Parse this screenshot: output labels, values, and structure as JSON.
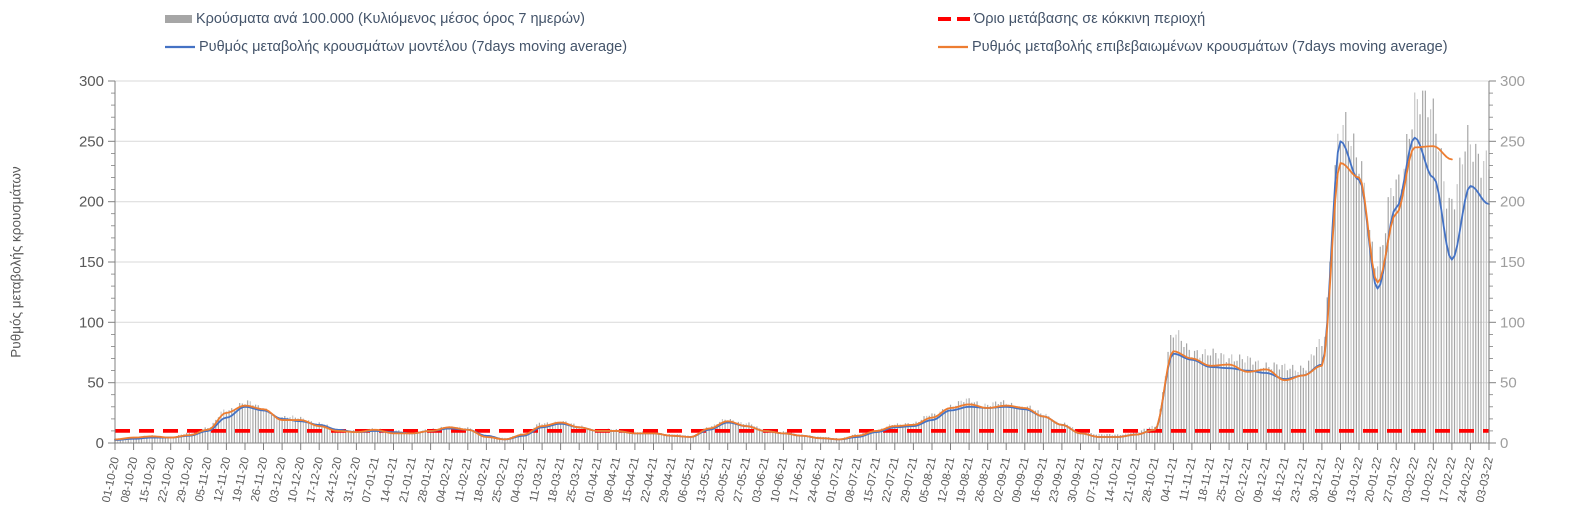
{
  "legend": {
    "bars": {
      "label": "Κρούσματα ανά 100.000 (Κυλιόμενος μέσος όρος 7 ημερών)",
      "color": "#A6A6A6"
    },
    "model": {
      "label": "Ρυθμός μεταβολής κρουσμάτων μοντέλου (7days moving average)",
      "color": "#4472C4"
    },
    "threshold": {
      "label": "Όριο μετάβασης σε κόκκινη περιοχή",
      "color": "#FF0000"
    },
    "confirmed": {
      "label": "Ρυθμός μεταβολής επιβεβαιωμένων κρουσμάτων (7days moving average)",
      "color": "#ED7D31"
    }
  },
  "y_axis": {
    "title": "Ρυθμός μεταβολής κρουσμάτων",
    "ticks": [
      0,
      50,
      100,
      150,
      200,
      250,
      300
    ],
    "min": 0,
    "max": 300,
    "minor_step": 10
  },
  "chart_data": {
    "type": "bar",
    "note": "daily bars + two 7-day moving-average lines; values sampled at weekly axis labels",
    "categories": [
      "01-10-20",
      "08-10-20",
      "15-10-20",
      "22-10-20",
      "29-10-20",
      "05-11-20",
      "12-11-20",
      "19-11-20",
      "26-11-20",
      "03-12-20",
      "10-12-20",
      "17-12-20",
      "24-12-20",
      "31-12-20",
      "07-01-21",
      "14-01-21",
      "21-01-21",
      "28-01-21",
      "04-02-21",
      "11-02-21",
      "18-02-21",
      "25-02-21",
      "04-03-21",
      "11-03-21",
      "18-03-21",
      "25-03-21",
      "01-04-21",
      "08-04-21",
      "15-04-21",
      "22-04-21",
      "29-04-21",
      "06-05-21",
      "13-05-21",
      "20-05-21",
      "27-05-21",
      "03-06-21",
      "10-06-21",
      "17-06-21",
      "24-06-21",
      "01-07-21",
      "08-07-21",
      "15-07-21",
      "22-07-21",
      "29-07-21",
      "05-08-21",
      "12-08-21",
      "19-08-21",
      "26-08-21",
      "02-09-21",
      "09-09-21",
      "16-09-21",
      "23-09-21",
      "30-09-21",
      "07-10-21",
      "14-10-21",
      "21-10-21",
      "28-10-21",
      "04-11-21",
      "11-11-21",
      "18-11-21",
      "25-11-21",
      "02-12-21",
      "09-12-21",
      "16-12-21",
      "23-12-21",
      "30-12-21",
      "06-01-22",
      "13-01-22",
      "20-01-22",
      "27-01-22",
      "03-02-22",
      "10-02-22",
      "17-02-22",
      "24-02-22",
      "03-03-22"
    ],
    "series": [
      {
        "role": "bars",
        "name": "Κρούσματα ανά 100.000 (Κυλιόμενος μέσος όρος 7 ημερών)",
        "type": "bar",
        "color": "#A6A6A6",
        "values": [
          3,
          5,
          6,
          5,
          8,
          13,
          27,
          34,
          28,
          21,
          21,
          16,
          11,
          10,
          12,
          10,
          9,
          11,
          14,
          12,
          6,
          4,
          8,
          16,
          18,
          14,
          11,
          11,
          9,
          9,
          7,
          6,
          13,
          20,
          16,
          11,
          9,
          7,
          5,
          4,
          7,
          11,
          15,
          17,
          23,
          31,
          35,
          32,
          33,
          30,
          24,
          16,
          10,
          7,
          7,
          9,
          14,
          88,
          78,
          72,
          73,
          67,
          66,
          61,
          64,
          80,
          268,
          228,
          152,
          212,
          280,
          272,
          196,
          252,
          232
        ]
      },
      {
        "role": "model",
        "name": "Ρυθμός μεταβολής κρουσμάτων μοντέλου (7days moving average)",
        "type": "line",
        "color": "#4472C4",
        "values": [
          2.5,
          3.5,
          4.5,
          4.5,
          6,
          10,
          21,
          30,
          27,
          20,
          18,
          15,
          11,
          9,
          10,
          9,
          8,
          10,
          12,
          11,
          6,
          3,
          6,
          13,
          16,
          13,
          10,
          10,
          8,
          8,
          6,
          5,
          11,
          17,
          14,
          10,
          8,
          6,
          4,
          3,
          5,
          9,
          13,
          14,
          19,
          27,
          30,
          29,
          30,
          28,
          22,
          15,
          8,
          5,
          5,
          7,
          11,
          74,
          69,
          63,
          62,
          60,
          58,
          53,
          56,
          65,
          250,
          218,
          128,
          195,
          253,
          220,
          152,
          213,
          198
        ]
      },
      {
        "role": "confirmed",
        "name": "Ρυθμός μεταβολής επιβεβαιωμένων κρουσμάτων (7days moving average)",
        "type": "line",
        "color": "#ED7D31",
        "values": [
          3,
          4.5,
          5.5,
          4.5,
          6.5,
          11,
          25,
          31,
          28,
          19,
          19,
          14,
          10,
          9,
          11,
          8,
          8,
          10,
          13,
          11,
          5,
          3,
          7,
          14,
          17,
          13,
          10,
          10,
          8,
          8,
          6,
          5,
          12,
          18,
          14,
          10,
          8,
          6,
          4,
          3,
          6,
          10,
          14,
          15,
          21,
          29,
          32,
          29,
          31,
          29,
          22,
          15,
          8,
          5,
          5,
          7,
          11,
          76,
          70,
          64,
          65,
          59,
          61,
          52,
          56,
          64,
          232,
          220,
          133,
          190,
          245,
          246,
          235,
          null,
          null
        ]
      },
      {
        "role": "threshold",
        "name": "Όριο μετάβασης σε κόκκινη περιοχή",
        "type": "threshold-line",
        "color": "#FF0000",
        "value": 10
      }
    ],
    "ylim": [
      0,
      300
    ],
    "grid": "horizontal",
    "legend_position": "top"
  }
}
